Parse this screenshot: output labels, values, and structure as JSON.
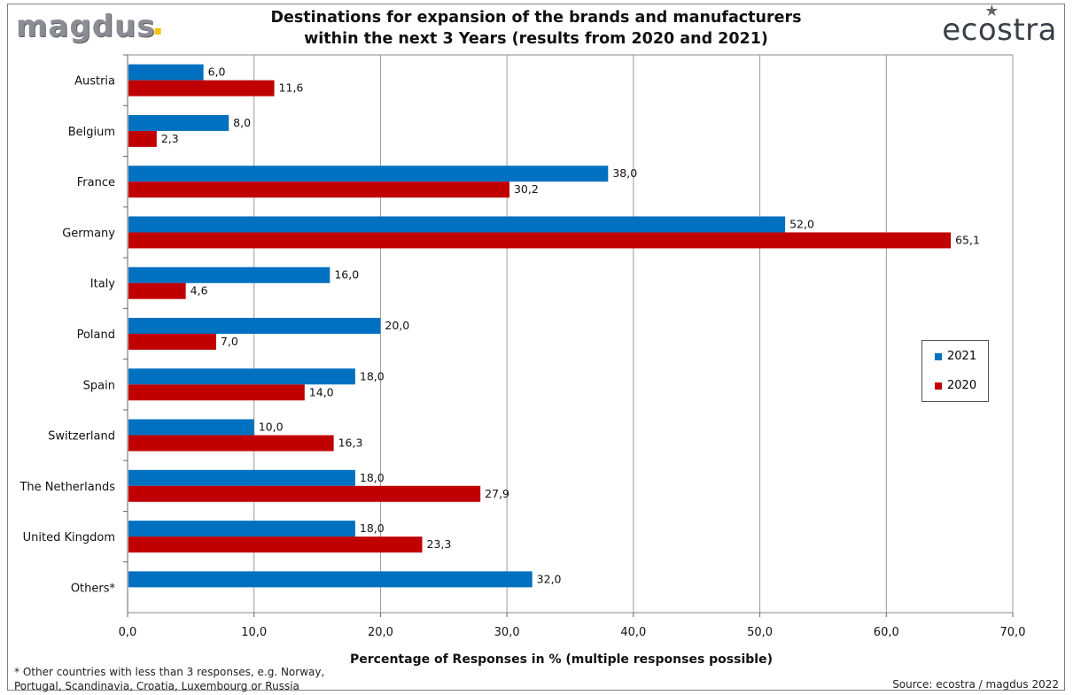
{
  "header": {
    "logo_left": "magdus",
    "logo_right": "ecostra",
    "title_line1": "Destinations for expansion of the brands and manufacturers",
    "title_line2": "within the next 3 Years (results from 2020 and 2021)"
  },
  "footer": {
    "footnote_line1": "* Other countries with less than 3 responses, e.g. Norway,",
    "footnote_line2": "Portugal, Scandinavia, Croatia, Luxembourg or Russia",
    "source": "Source: ecostra / magdus 2022"
  },
  "colors": {
    "s2021": "#0070c0",
    "s2020": "#c00000"
  },
  "chart_data": {
    "type": "bar",
    "orientation": "horizontal",
    "title": "Destinations for expansion of the brands and manufacturers within the next 3 Years (results from 2020 and 2021)",
    "xlabel": "Percentage of Responses in % (multiple responses possible)",
    "ylabel": "",
    "xlim": [
      0,
      70
    ],
    "xticks": [
      0,
      10,
      20,
      30,
      40,
      50,
      60,
      70
    ],
    "xtick_labels": [
      "0,0",
      "10,0",
      "20,0",
      "30,0",
      "40,0",
      "50,0",
      "60,0",
      "70,0"
    ],
    "grid": true,
    "legend_position": "right",
    "categories": [
      "Austria",
      "Belgium",
      "France",
      "Germany",
      "Italy",
      "Poland",
      "Spain",
      "Switzerland",
      "The Netherlands",
      "United Kingdom",
      "Others*"
    ],
    "series": [
      {
        "name": "2021",
        "values": [
          6.0,
          8.0,
          38.0,
          52.0,
          16.0,
          20.0,
          18.0,
          10.0,
          18.0,
          18.0,
          32.0
        ],
        "labels": [
          "6,0",
          "8,0",
          "38,0",
          "52,0",
          "16,0",
          "20,0",
          "18,0",
          "10,0",
          "18,0",
          "18,0",
          "32,0"
        ]
      },
      {
        "name": "2020",
        "values": [
          11.6,
          2.3,
          30.2,
          65.1,
          4.6,
          7.0,
          14.0,
          16.3,
          27.9,
          23.3,
          null
        ],
        "labels": [
          "11,6",
          "2,3",
          "30,2",
          "65,1",
          "4,6",
          "7,0",
          "14,0",
          "16,3",
          "27,9",
          "23,3",
          ""
        ]
      }
    ]
  }
}
